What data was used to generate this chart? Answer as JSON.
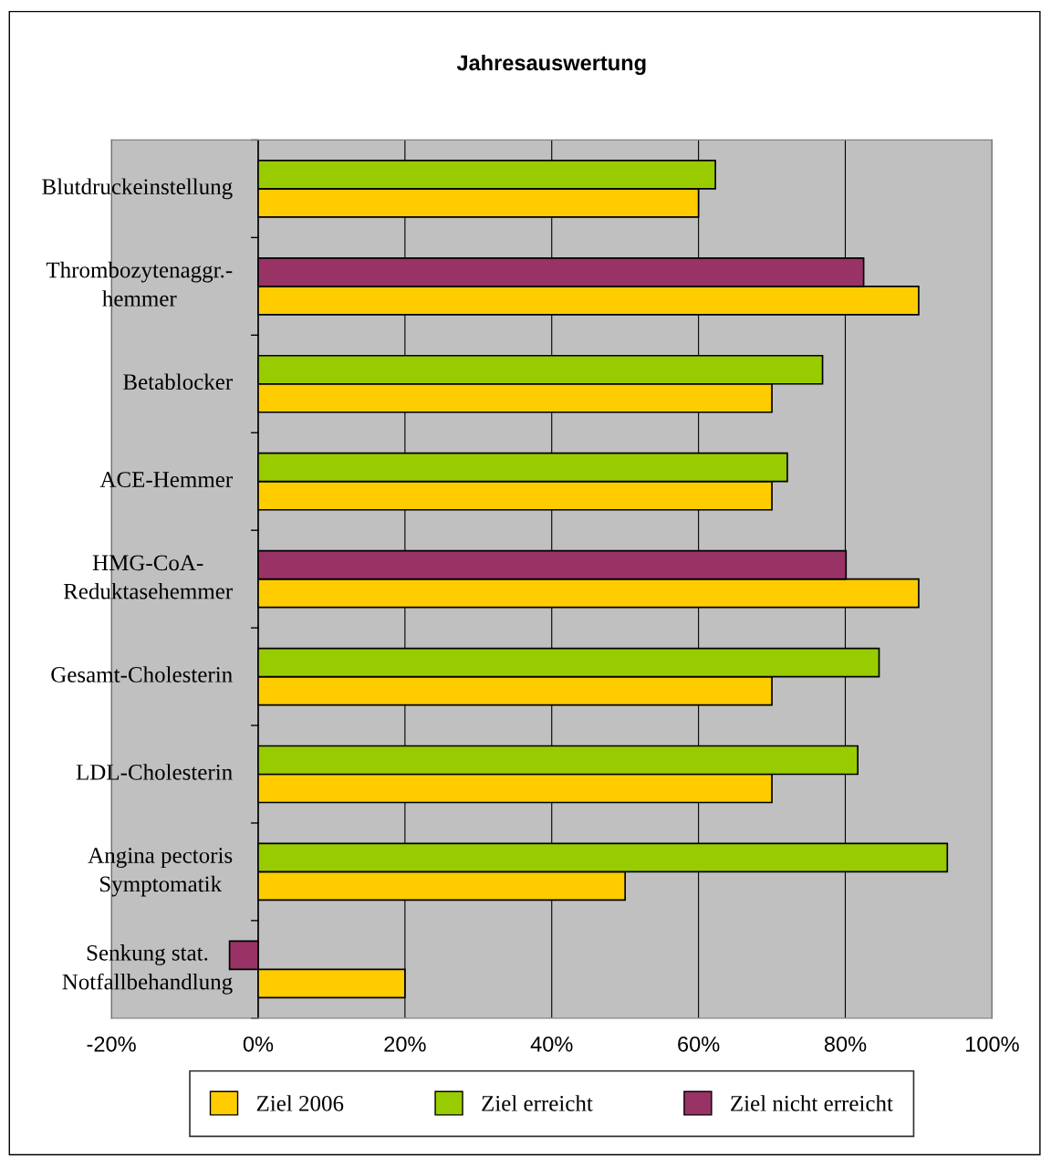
{
  "chart_data": {
    "type": "bar",
    "orientation": "horizontal",
    "title": "Jahresauswertung",
    "categories": [
      "Blutdruckeinstellung",
      "Thrombozytenaggr.-\nhemmer",
      "Betablocker",
      "ACE-Hemmer",
      "HMG-CoA-\nReduktasehemmer",
      "Gesamt-Cholesterin",
      "LDL-Cholesterin",
      "Angina pectoris\nSymptomatik",
      "Senkung stat.\nNotfallbehandlung"
    ],
    "series": [
      {
        "name": "Ziel 2006",
        "color": "#ffcc00",
        "values": [
          60,
          90,
          70,
          70,
          90,
          70,
          70,
          50,
          20
        ]
      },
      {
        "name": "Ziel erreicht",
        "color": "#99cc00",
        "values": [
          62.3,
          null,
          76.9,
          72.1,
          null,
          84.6,
          81.7,
          93.9,
          null
        ]
      },
      {
        "name": "Ziel nicht erreicht",
        "color": "#993366",
        "values": [
          null,
          82.5,
          null,
          null,
          80.1,
          null,
          null,
          null,
          -3.9
        ]
      }
    ],
    "xlim": [
      -20,
      100
    ],
    "xticks": [
      {
        "value": -20,
        "label": "-20%"
      },
      {
        "value": 0,
        "label": "0%"
      },
      {
        "value": 20,
        "label": "20%"
      },
      {
        "value": 40,
        "label": "40%"
      },
      {
        "value": 60,
        "label": "60%"
      },
      {
        "value": 80,
        "label": "80%"
      },
      {
        "value": 100,
        "label": "100%"
      }
    ],
    "grid": "x",
    "legend": "bottom"
  }
}
